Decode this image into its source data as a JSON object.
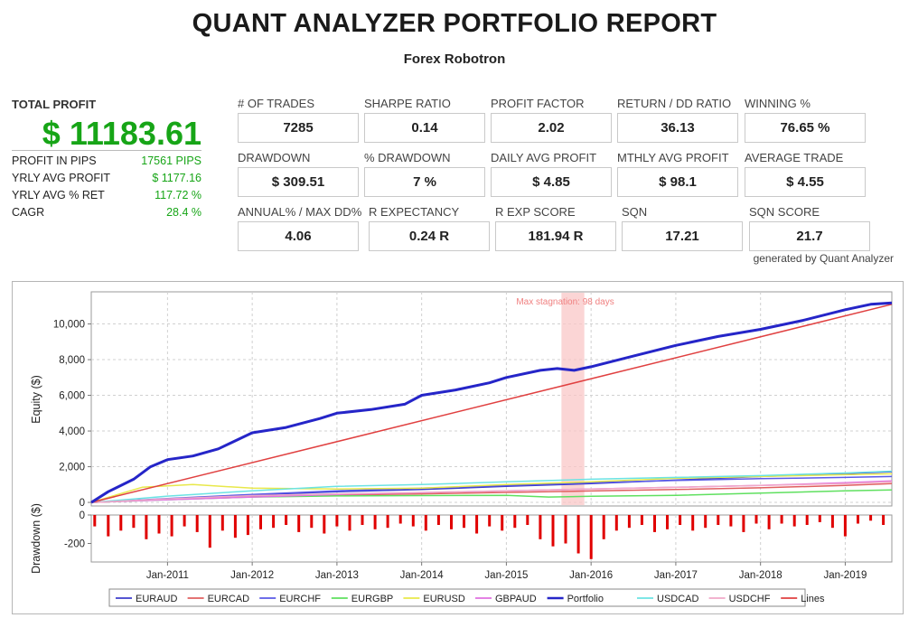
{
  "header": {
    "title": "QUANT ANALYZER PORTFOLIO REPORT",
    "subtitle": "Forex Robotron"
  },
  "total_profit": {
    "label": "TOTAL PROFIT",
    "value": "$ 11183.61"
  },
  "summary": [
    {
      "label": "PROFIT IN PIPS",
      "value": "17561 PIPS"
    },
    {
      "label": "YRLY AVG PROFIT",
      "value": "$ 1177.16"
    },
    {
      "label": "YRLY AVG % RET",
      "value": "117.72 %"
    },
    {
      "label": "CAGR",
      "value": "28.4 %"
    }
  ],
  "metrics": [
    {
      "label": "# OF TRADES",
      "value": "7285"
    },
    {
      "label": "SHARPE RATIO",
      "value": "0.14"
    },
    {
      "label": "PROFIT FACTOR",
      "value": "2.02"
    },
    {
      "label": "RETURN / DD RATIO",
      "value": "36.13"
    },
    {
      "label": "WINNING %",
      "value": "76.65 %"
    },
    {
      "label": "DRAWDOWN",
      "value": "$ 309.51"
    },
    {
      "label": "% DRAWDOWN",
      "value": "7 %"
    },
    {
      "label": "DAILY AVG PROFIT",
      "value": "$ 4.85"
    },
    {
      "label": "MTHLY AVG PROFIT",
      "value": "$ 98.1"
    },
    {
      "label": "AVERAGE TRADE",
      "value": "$ 4.55"
    },
    {
      "label": "ANNUAL% / MAX DD%",
      "value": "4.06"
    },
    {
      "label": "R EXPECTANCY",
      "value": "0.24 R"
    },
    {
      "label": "R EXP SCORE",
      "value": "181.94 R"
    },
    {
      "label": "SQN",
      "value": "17.21"
    },
    {
      "label": "SQN SCORE",
      "value": "21.7"
    }
  ],
  "generated_by": "generated by Quant Analyzer",
  "chart_data": {
    "type": "line",
    "x_range": [
      2010.1,
      2019.55
    ],
    "x_ticks": [
      "Jan-2011",
      "Jan-2012",
      "Jan-2013",
      "Jan-2014",
      "Jan-2015",
      "Jan-2016",
      "Jan-2017",
      "Jan-2018",
      "Jan-2019"
    ],
    "x_tick_values": [
      2011,
      2012,
      2013,
      2014,
      2015,
      2016,
      2017,
      2018,
      2019
    ],
    "equity": {
      "ylabel": "Equity ($)",
      "ylim": [
        -200,
        11800
      ],
      "y_ticks": [
        0,
        2000,
        4000,
        6000,
        8000,
        10000
      ],
      "y_tick_labels": [
        "0",
        "2,000",
        "4,000",
        "6,000",
        "8,000",
        "10,000"
      ],
      "grid": true,
      "stagnation_label": "Max stagnation: 98 days",
      "stagnation_period": [
        2015.65,
        2015.92
      ],
      "stagnation_color": "#f9c7c7",
      "series": [
        {
          "name": "EURAUD",
          "color": "#3d3dcc",
          "width": 1.5,
          "x": [
            2010.1,
            2011,
            2012,
            2013,
            2014,
            2015,
            2016,
            2017,
            2018,
            2019,
            2019.55
          ],
          "values": [
            0,
            200,
            420,
            600,
            720,
            900,
            1050,
            1250,
            1450,
            1620,
            1720
          ]
        },
        {
          "name": "EURCAD",
          "color": "#e06060",
          "width": 1.5,
          "x": [
            2010.1,
            2011,
            2012,
            2013,
            2014,
            2015,
            2016,
            2017,
            2018,
            2019,
            2019.55
          ],
          "values": [
            0,
            180,
            320,
            420,
            480,
            560,
            640,
            720,
            820,
            950,
            1050
          ]
        },
        {
          "name": "EURCHF",
          "color": "#5a5ae6",
          "width": 1.5,
          "x": [
            2010.1,
            2011,
            2012,
            2013,
            2014,
            2015,
            2016,
            2017,
            2018,
            2019,
            2019.55
          ],
          "values": [
            0,
            220,
            450,
            650,
            800,
            950,
            1100,
            1230,
            1330,
            1400,
            1450
          ]
        },
        {
          "name": "EURGBP",
          "color": "#5fe05f",
          "width": 1.5,
          "x": [
            2010.1,
            2011,
            2012,
            2013,
            2014,
            2015,
            2015.5,
            2016,
            2017,
            2018,
            2019,
            2019.55
          ],
          "values": [
            0,
            150,
            300,
            360,
            380,
            400,
            300,
            340,
            400,
            520,
            650,
            700
          ]
        },
        {
          "name": "EURUSD",
          "color": "#e8e84a",
          "width": 1.5,
          "x": [
            2010.1,
            2010.7,
            2011.3,
            2012,
            2013,
            2014,
            2015,
            2016,
            2017,
            2018,
            2019,
            2019.55
          ],
          "values": [
            0,
            850,
            1000,
            800,
            750,
            800,
            1000,
            1150,
            1350,
            1450,
            1550,
            1600
          ]
        },
        {
          "name": "GBPAUD",
          "color": "#e070e0",
          "width": 1.5,
          "x": [
            2010.1,
            2011,
            2012,
            2013,
            2014,
            2015,
            2016,
            2017,
            2018,
            2019,
            2019.55
          ],
          "values": [
            0,
            150,
            300,
            450,
            550,
            650,
            750,
            850,
            950,
            1100,
            1200
          ]
        },
        {
          "name": "Portfolio",
          "color": "#2525c8",
          "width": 3,
          "x": [
            2010.1,
            2010.3,
            2010.6,
            2010.8,
            2011,
            2011.3,
            2011.6,
            2012,
            2012.4,
            2012.8,
            2013,
            2013.4,
            2013.8,
            2014,
            2014.4,
            2014.8,
            2015,
            2015.4,
            2015.6,
            2015.8,
            2016,
            2016.5,
            2017,
            2017.5,
            2018,
            2018.5,
            2019,
            2019.3,
            2019.55
          ],
          "values": [
            0,
            600,
            1300,
            2000,
            2400,
            2600,
            3000,
            3900,
            4200,
            4700,
            5000,
            5200,
            5500,
            6000,
            6300,
            6700,
            7000,
            7400,
            7500,
            7400,
            7600,
            8200,
            8800,
            9300,
            9700,
            10200,
            10800,
            11100,
            11183
          ]
        },
        {
          "name": "USDCAD",
          "color": "#6be3e3",
          "width": 1.5,
          "x": [
            2010.1,
            2011,
            2012,
            2013,
            2014,
            2015,
            2016,
            2017,
            2018,
            2019,
            2019.55
          ],
          "values": [
            0,
            350,
            650,
            900,
            1000,
            1150,
            1300,
            1400,
            1500,
            1650,
            1750
          ]
        },
        {
          "name": "USDCHF",
          "color": "#f0a8c8",
          "width": 1.5,
          "x": [
            2010.1,
            2011,
            2012,
            2013,
            2014,
            2015,
            2016,
            2017,
            2018,
            2019,
            2019.55
          ],
          "values": [
            0,
            200,
            380,
            480,
            560,
            650,
            750,
            850,
            950,
            1050,
            1150
          ]
        },
        {
          "name": "Lines",
          "color": "#e04040",
          "width": 1.5,
          "x": [
            2010.1,
            2019.55
          ],
          "values": [
            0,
            11100
          ]
        }
      ]
    },
    "drawdown": {
      "ylabel": "Drawdown ($)",
      "ylim": [
        -330,
        0
      ],
      "y_ticks": [
        0,
        -200
      ],
      "y_tick_labels": [
        "0",
        "-200"
      ],
      "color": "#e00000",
      "x": [
        2010.14,
        2010.3,
        2010.45,
        2010.6,
        2010.75,
        2010.9,
        2011.05,
        2011.2,
        2011.35,
        2011.5,
        2011.65,
        2011.8,
        2011.95,
        2012.1,
        2012.25,
        2012.4,
        2012.55,
        2012.7,
        2012.85,
        2013.0,
        2013.15,
        2013.3,
        2013.45,
        2013.6,
        2013.75,
        2013.9,
        2014.05,
        2014.2,
        2014.35,
        2014.5,
        2014.65,
        2014.8,
        2014.95,
        2015.1,
        2015.25,
        2015.4,
        2015.55,
        2015.7,
        2015.85,
        2016.0,
        2016.15,
        2016.3,
        2016.45,
        2016.6,
        2016.75,
        2016.9,
        2017.05,
        2017.2,
        2017.35,
        2017.5,
        2017.65,
        2017.8,
        2017.95,
        2018.1,
        2018.25,
        2018.4,
        2018.55,
        2018.7,
        2018.85,
        2019.0,
        2019.15,
        2019.3,
        2019.45
      ],
      "values": [
        -80,
        -150,
        -110,
        -90,
        -170,
        -130,
        -150,
        -80,
        -120,
        -230,
        -110,
        -160,
        -140,
        -100,
        -90,
        -70,
        -120,
        -90,
        -130,
        -80,
        -110,
        -70,
        -100,
        -90,
        -60,
        -80,
        -110,
        -70,
        -100,
        -90,
        -130,
        -80,
        -110,
        -90,
        -70,
        -170,
        -220,
        -200,
        -270,
        -310,
        -170,
        -110,
        -90,
        -70,
        -120,
        -100,
        -70,
        -110,
        -90,
        -70,
        -80,
        -120,
        -60,
        -100,
        -60,
        -80,
        -70,
        -50,
        -90,
        -150,
        -60,
        -40,
        -70
      ]
    }
  }
}
